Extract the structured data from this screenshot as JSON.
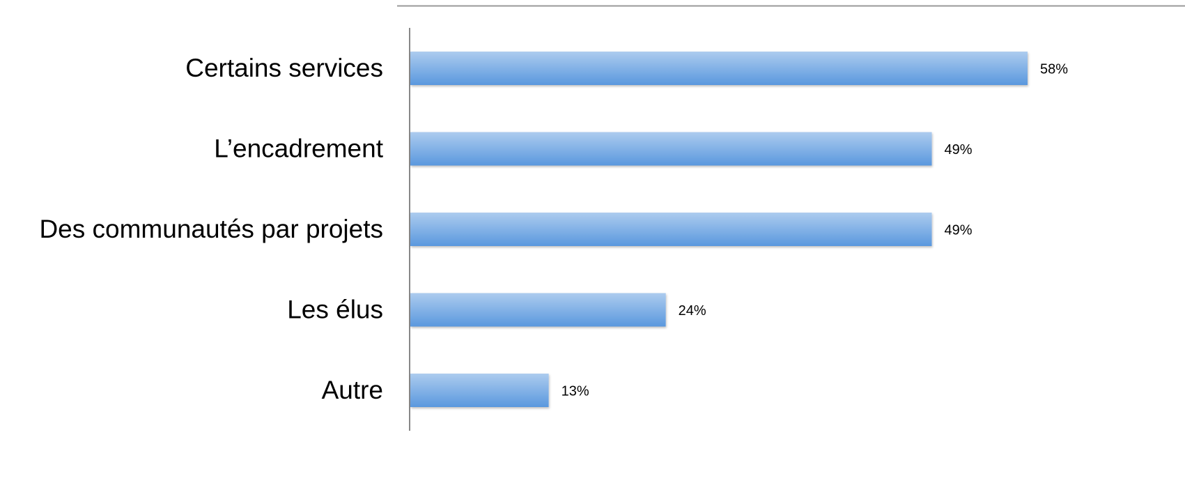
{
  "chart_data": {
    "type": "bar",
    "orientation": "horizontal",
    "categories": [
      "Certains services",
      "L’encadrement",
      "Des communautés par projets",
      "Les élus",
      "Autre"
    ],
    "values": [
      58,
      49,
      49,
      24,
      13
    ],
    "value_labels": [
      "58%",
      "49%",
      "49%",
      "24%",
      "13%"
    ],
    "color": "#5a98de"
  }
}
